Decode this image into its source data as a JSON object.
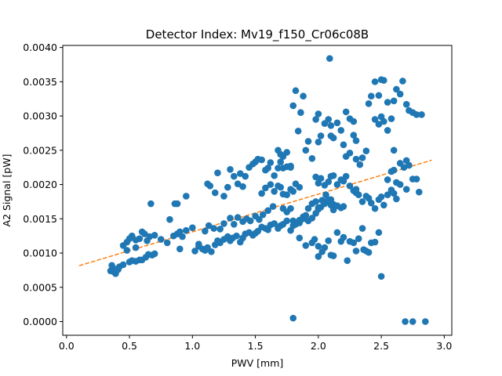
{
  "chart_data": {
    "type": "scatter",
    "title": "Detector Index: Mv19_f150_Cr06c08B",
    "xlabel": "PWV [mm]",
    "ylabel": "A2 Signal [pW]",
    "xlim": [
      -0.03,
      3.06
    ],
    "ylim": [
      -0.0002,
      0.00403
    ],
    "xticks": [
      0.0,
      0.5,
      1.0,
      1.5,
      2.0,
      2.5,
      3.0
    ],
    "xtick_labels": [
      "0.0",
      "0.5",
      "1.0",
      "1.5",
      "2.0",
      "2.5",
      "3.0"
    ],
    "yticks": [
      0.0,
      0.0005,
      0.001,
      0.0015,
      0.002,
      0.0025,
      0.003,
      0.0035,
      0.004
    ],
    "ytick_labels": [
      "0.0000",
      "0.0005",
      "0.0010",
      "0.0015",
      "0.0020",
      "0.0025",
      "0.0030",
      "0.0035",
      "0.0040"
    ],
    "grid": false,
    "colors": {
      "points": "#1f77b4",
      "fit": "#ff7f0e"
    },
    "series": [
      {
        "name": "data",
        "style": "markers",
        "points": [
          [
            0.35,
            0.00074
          ],
          [
            0.37,
            0.00078
          ],
          [
            0.38,
            0.00072
          ],
          [
            0.4,
            0.00075
          ],
          [
            0.42,
            0.0008
          ],
          [
            0.45,
            0.00083
          ],
          [
            0.36,
            0.00082
          ],
          [
            0.39,
            0.0007
          ],
          [
            0.41,
            0.00076
          ],
          [
            0.5,
            0.00087
          ],
          [
            0.52,
            0.00089
          ],
          [
            0.55,
            0.00088
          ],
          [
            0.58,
            0.0009
          ],
          [
            0.6,
            0.0009
          ],
          [
            0.63,
            0.00094
          ],
          [
            0.65,
            0.00098
          ],
          [
            0.68,
            0.00097
          ],
          [
            0.7,
            0.00099
          ],
          [
            0.45,
            0.00111
          ],
          [
            0.48,
            0.00116
          ],
          [
            0.5,
            0.00121
          ],
          [
            0.52,
            0.00125
          ],
          [
            0.55,
            0.00119
          ],
          [
            0.58,
            0.00121
          ],
          [
            0.6,
            0.00131
          ],
          [
            0.62,
            0.00128
          ],
          [
            0.64,
            0.00118
          ],
          [
            0.66,
            0.00124
          ],
          [
            0.7,
            0.00126
          ],
          [
            0.55,
            0.00108
          ],
          [
            0.48,
            0.00104
          ],
          [
            0.67,
            0.00172
          ],
          [
            0.75,
            0.0012
          ],
          [
            0.8,
            0.00115
          ],
          [
            0.85,
            0.00125
          ],
          [
            0.88,
            0.00128
          ],
          [
            0.9,
            0.00131
          ],
          [
            0.95,
            0.00133
          ],
          [
            1.0,
            0.00137
          ],
          [
            0.92,
            0.00124
          ],
          [
            0.82,
            0.00149
          ],
          [
            0.86,
            0.00172
          ],
          [
            0.88,
            0.00172
          ],
          [
            0.95,
            0.00183
          ],
          [
            0.9,
            0.00106
          ],
          [
            1.02,
            0.00103
          ],
          [
            1.05,
            0.0011
          ],
          [
            1.08,
            0.00106
          ],
          [
            1.1,
            0.00104
          ],
          [
            1.12,
            0.00108
          ],
          [
            1.15,
            0.00102
          ],
          [
            1.18,
            0.00112
          ],
          [
            1.2,
            0.00118
          ],
          [
            1.22,
            0.00115
          ],
          [
            1.25,
            0.0012
          ],
          [
            1.28,
            0.00124
          ],
          [
            1.3,
            0.00118
          ],
          [
            1.32,
            0.00122
          ],
          [
            1.35,
            0.00125
          ],
          [
            1.38,
            0.00116
          ],
          [
            1.4,
            0.00122
          ],
          [
            1.42,
            0.00128
          ],
          [
            1.45,
            0.0013
          ],
          [
            1.48,
            0.00126
          ],
          [
            1.5,
            0.00129
          ],
          [
            1.52,
            0.00132
          ],
          [
            1.55,
            0.00138
          ],
          [
            1.58,
            0.00136
          ],
          [
            1.6,
            0.00134
          ],
          [
            1.62,
            0.00141
          ],
          [
            1.65,
            0.00143
          ],
          [
            1.68,
            0.00136
          ],
          [
            1.7,
            0.0014
          ],
          [
            1.72,
            0.00142
          ],
          [
            1.05,
            0.00113
          ],
          [
            1.1,
            0.00132
          ],
          [
            1.13,
            0.0014
          ],
          [
            1.17,
            0.00136
          ],
          [
            1.22,
            0.00135
          ],
          [
            1.25,
            0.00143
          ],
          [
            1.3,
            0.00151
          ],
          [
            1.33,
            0.00142
          ],
          [
            1.36,
            0.00152
          ],
          [
            1.4,
            0.00146
          ],
          [
            1.43,
            0.0015
          ],
          [
            1.46,
            0.00147
          ],
          [
            1.5,
            0.00154
          ],
          [
            1.53,
            0.00149
          ],
          [
            1.56,
            0.00156
          ],
          [
            1.6,
            0.00162
          ],
          [
            1.64,
            0.00168
          ],
          [
            1.12,
            0.00201
          ],
          [
            1.14,
            0.00198
          ],
          [
            1.18,
            0.00188
          ],
          [
            1.2,
            0.00217
          ],
          [
            1.25,
            0.00183
          ],
          [
            1.28,
            0.00196
          ],
          [
            1.3,
            0.00222
          ],
          [
            1.33,
            0.00212
          ],
          [
            1.36,
            0.00201
          ],
          [
            1.38,
            0.00216
          ],
          [
            1.4,
            0.00197
          ],
          [
            1.42,
            0.00212
          ],
          [
            1.45,
            0.00225
          ],
          [
            1.48,
            0.0023
          ],
          [
            1.5,
            0.00233
          ],
          [
            1.52,
            0.00237
          ],
          [
            1.55,
            0.00236
          ],
          [
            1.58,
            0.00221
          ],
          [
            1.6,
            0.00224
          ],
          [
            1.62,
            0.00232
          ],
          [
            1.65,
            0.00213
          ],
          [
            1.68,
            0.00224
          ],
          [
            1.7,
            0.00233
          ],
          [
            1.72,
            0.00224
          ],
          [
            1.75,
            0.00226
          ],
          [
            1.78,
            0.00227
          ],
          [
            1.55,
            0.00187
          ],
          [
            1.58,
            0.00195
          ],
          [
            1.62,
            0.002
          ],
          [
            1.65,
            0.0019
          ],
          [
            1.68,
            0.00198
          ],
          [
            1.7,
            0.00196
          ],
          [
            1.72,
            0.00186
          ],
          [
            1.75,
            0.00185
          ],
          [
            1.78,
            0.00193
          ],
          [
            1.8,
            0.0019
          ],
          [
            1.82,
            0.00201
          ],
          [
            1.85,
            0.00196
          ],
          [
            1.68,
            0.0025
          ],
          [
            1.7,
            0.00244
          ],
          [
            1.72,
            0.00241
          ],
          [
            1.75,
            0.00247
          ],
          [
            1.78,
            0.00225
          ],
          [
            1.8,
            0.00315
          ],
          [
            1.82,
            0.00337
          ],
          [
            1.84,
            0.00278
          ],
          [
            1.86,
            0.00305
          ],
          [
            1.88,
            0.00329
          ],
          [
            1.9,
            0.0025
          ],
          [
            1.92,
            0.00263
          ],
          [
            1.95,
            0.00238
          ],
          [
            1.98,
            0.00211
          ],
          [
            1.98,
            0.00295
          ],
          [
            1.72,
            0.00165
          ],
          [
            1.75,
            0.0016
          ],
          [
            1.78,
            0.00165
          ],
          [
            1.8,
            0.00147
          ],
          [
            1.82,
            0.00142
          ],
          [
            1.85,
            0.00144
          ],
          [
            1.88,
            0.0015
          ],
          [
            1.9,
            0.00155
          ],
          [
            1.92,
            0.00147
          ],
          [
            1.95,
            0.00151
          ],
          [
            1.98,
            0.00158
          ],
          [
            2.0,
            0.00164
          ],
          [
            2.02,
            0.00167
          ],
          [
            2.05,
            0.00172
          ],
          [
            2.08,
            0.00175
          ],
          [
            2.1,
            0.00178
          ],
          [
            2.12,
            0.00171
          ],
          [
            2.15,
            0.00169
          ],
          [
            2.18,
            0.00166
          ],
          [
            2.2,
            0.00168
          ],
          [
            1.75,
            0.00147
          ],
          [
            1.78,
            0.00133
          ],
          [
            1.8,
            0.0014
          ],
          [
            1.85,
            0.00148
          ],
          [
            1.88,
            0.00153
          ],
          [
            1.92,
            0.00165
          ],
          [
            1.95,
            0.00172
          ],
          [
            1.98,
            0.00175
          ],
          [
            2.0,
            0.00166
          ],
          [
            2.03,
            0.00177
          ],
          [
            2.06,
            0.00185
          ],
          [
            2.08,
            0.00178
          ],
          [
            2.1,
            0.0017
          ],
          [
            2.12,
            0.00163
          ],
          [
            1.8,
            5e-05
          ],
          [
            1.85,
            0.00122
          ],
          [
            1.9,
            0.00111
          ],
          [
            1.95,
            0.00115
          ],
          [
            1.97,
            0.0012
          ],
          [
            2.0,
            0.0011
          ],
          [
            2.0,
            0.00095
          ],
          [
            2.03,
            0.00102
          ],
          [
            2.05,
            0.00108
          ],
          [
            2.08,
            0.00118
          ],
          [
            2.1,
            0.00097
          ],
          [
            2.12,
            0.00096
          ],
          [
            2.15,
            0.0013
          ],
          [
            2.18,
            0.00117
          ],
          [
            2.2,
            0.00123
          ],
          [
            2.0,
            0.00202
          ],
          [
            2.02,
            0.00209
          ],
          [
            2.05,
            0.00199
          ],
          [
            2.08,
            0.00204
          ],
          [
            2.1,
            0.00212
          ],
          [
            2.12,
            0.00213
          ],
          [
            2.15,
            0.002
          ],
          [
            2.18,
            0.00207
          ],
          [
            2.2,
            0.00205
          ],
          [
            2.22,
            0.00212
          ],
          [
            2.25,
            0.00198
          ],
          [
            2.28,
            0.00191
          ],
          [
            2.3,
            0.00188
          ],
          [
            2.0,
            0.00262
          ],
          [
            2.02,
            0.00271
          ],
          [
            2.05,
            0.00289
          ],
          [
            2.08,
            0.00295
          ],
          [
            2.1,
            0.00286
          ],
          [
            2.12,
            0.00268
          ],
          [
            2.15,
            0.0029
          ],
          [
            2.18,
            0.00279
          ],
          [
            2.2,
            0.00258
          ],
          [
            2.22,
            0.00241
          ],
          [
            2.25,
            0.00246
          ],
          [
            2.28,
            0.00272
          ],
          [
            2.3,
            0.00264
          ],
          [
            2.09,
            0.00384
          ],
          [
            2.0,
            0.00303
          ],
          [
            2.1,
            0.00271
          ],
          [
            2.22,
            0.00306
          ],
          [
            2.25,
            0.00296
          ],
          [
            2.28,
            0.00292
          ],
          [
            2.3,
            0.00237
          ],
          [
            2.33,
            0.00229
          ],
          [
            2.35,
            0.00239
          ],
          [
            2.38,
            0.00249
          ],
          [
            2.4,
            0.00318
          ],
          [
            2.42,
            0.00329
          ],
          [
            2.45,
            0.00295
          ],
          [
            2.48,
            0.00288
          ],
          [
            2.5,
            0.00299
          ],
          [
            2.52,
            0.00292
          ],
          [
            2.3,
            0.00193
          ],
          [
            2.32,
            0.00185
          ],
          [
            2.35,
            0.00175
          ],
          [
            2.38,
            0.00183
          ],
          [
            2.4,
            0.0018
          ],
          [
            2.42,
            0.00173
          ],
          [
            2.45,
            0.00165
          ],
          [
            2.48,
            0.00178
          ],
          [
            2.5,
            0.00182
          ],
          [
            2.52,
            0.0017
          ],
          [
            2.55,
            0.00185
          ],
          [
            2.58,
            0.00192
          ],
          [
            2.6,
            0.00187
          ],
          [
            2.62,
            0.00179
          ],
          [
            2.25,
            0.00117
          ],
          [
            2.28,
            0.00115
          ],
          [
            2.3,
            0.00103
          ],
          [
            2.32,
            0.00121
          ],
          [
            2.35,
            0.00136
          ],
          [
            2.36,
            0.00105
          ],
          [
            2.38,
            0.00103
          ],
          [
            2.4,
            0.00101
          ],
          [
            2.42,
            0.00115
          ],
          [
            2.45,
            0.00116
          ],
          [
            2.48,
            0.0013
          ],
          [
            2.5,
            0.00066
          ],
          [
            2.23,
            0.00089
          ],
          [
            2.45,
            0.0035
          ],
          [
            2.48,
            0.0033
          ],
          [
            2.5,
            0.00353
          ],
          [
            2.52,
            0.00352
          ],
          [
            2.55,
            0.0032
          ],
          [
            2.58,
            0.00296
          ],
          [
            2.6,
            0.00322
          ],
          [
            2.62,
            0.00339
          ],
          [
            2.65,
            0.00332
          ],
          [
            2.67,
            0.00351
          ],
          [
            2.7,
            0.00317
          ],
          [
            2.72,
            0.00308
          ],
          [
            2.75,
            0.00305
          ],
          [
            2.78,
            0.00302
          ],
          [
            2.82,
            0.00302
          ],
          [
            2.55,
            0.00279
          ],
          [
            2.6,
            0.0025
          ],
          [
            2.55,
            0.00207
          ],
          [
            2.58,
            0.00219
          ],
          [
            2.6,
            0.00221
          ],
          [
            2.62,
            0.00203
          ],
          [
            2.65,
            0.00231
          ],
          [
            2.68,
            0.00225
          ],
          [
            2.7,
            0.00235
          ],
          [
            2.72,
            0.00228
          ],
          [
            2.75,
            0.00208
          ],
          [
            2.78,
            0.00208
          ],
          [
            2.8,
            0.00189
          ],
          [
            2.65,
            0.002
          ],
          [
            2.7,
            0.00193
          ],
          [
            2.69,
            0.0
          ],
          [
            2.75,
            0.0
          ],
          [
            2.85,
            0.0
          ]
        ]
      },
      {
        "name": "linear fit",
        "style": "dashed-line",
        "points": [
          [
            0.1,
            0.000815
          ],
          [
            2.9,
            0.002355
          ]
        ]
      }
    ]
  }
}
